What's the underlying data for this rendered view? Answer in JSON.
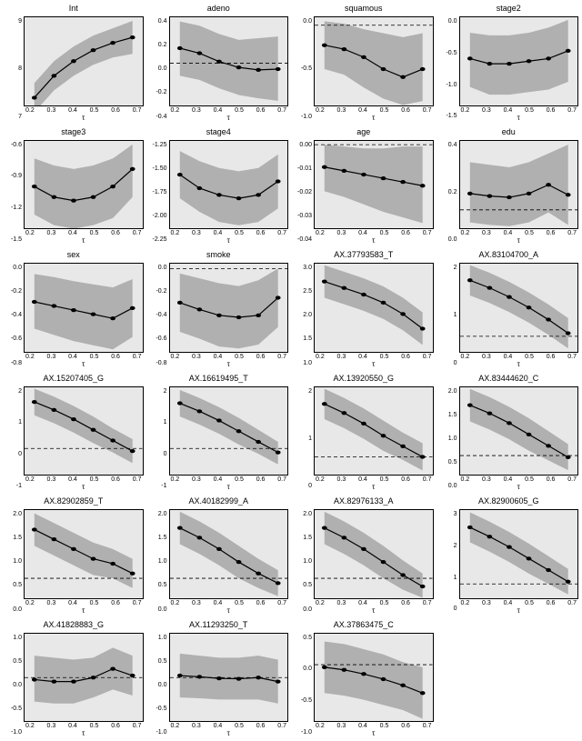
{
  "global": {
    "bg_color": "#e8e8e8",
    "band_color": "#b0b0b0",
    "line_color": "#000000",
    "zero_dash": "4,3",
    "marker_radius": 2.2,
    "line_width": 1.2,
    "title_fontsize": 9,
    "tick_fontsize": 7,
    "xlabel": "τ",
    "x_values": [
      0.2,
      0.3,
      0.4,
      0.5,
      0.6,
      0.7
    ],
    "x_tick_labels": [
      "0.2",
      "0.3",
      "0.4",
      "0.5",
      "0.6",
      "0.7"
    ],
    "x_domain": [
      0.15,
      0.75
    ]
  },
  "panels": [
    {
      "title": "Int",
      "ylim": [
        6.8,
        9.2
      ],
      "yticks": [
        7,
        8,
        9
      ],
      "y_tick_labels": [
        "7",
        "8",
        "9"
      ],
      "zero_line": false,
      "upper": [
        7.4,
        8.0,
        8.4,
        8.7,
        8.9,
        9.1
      ],
      "mid": [
        7.0,
        7.6,
        8.0,
        8.3,
        8.5,
        8.65
      ],
      "lower": [
        6.6,
        7.2,
        7.6,
        7.9,
        8.1,
        8.2
      ]
    },
    {
      "title": "adeno",
      "ylim": [
        -0.5,
        0.55
      ],
      "yticks": [
        -0.4,
        -0.2,
        0.0,
        0.2,
        0.4
      ],
      "y_tick_labels": [
        "-0.4",
        "-0.2",
        "0.0",
        "0.2",
        "0.4"
      ],
      "zero_line": true,
      "upper": [
        0.5,
        0.45,
        0.35,
        0.28,
        0.3,
        0.32
      ],
      "mid": [
        0.18,
        0.12,
        0.02,
        -0.05,
        -0.08,
        -0.07
      ],
      "lower": [
        -0.15,
        -0.2,
        -0.3,
        -0.38,
        -0.42,
        -0.45
      ]
    },
    {
      "title": "squamous",
      "ylim": [
        -1.0,
        0.1
      ],
      "yticks": [
        -1.0,
        -0.5,
        0.0
      ],
      "y_tick_labels": [
        "-1.0",
        "-0.5",
        "0.0"
      ],
      "zero_line": true,
      "upper": [
        0.05,
        0.02,
        -0.05,
        -0.1,
        -0.15,
        -0.1
      ],
      "mid": [
        -0.25,
        -0.3,
        -0.4,
        -0.55,
        -0.65,
        -0.55
      ],
      "lower": [
        -0.55,
        -0.62,
        -0.78,
        -0.92,
        -1.0,
        -0.95
      ]
    },
    {
      "title": "stage2",
      "ylim": [
        -1.6,
        0.1
      ],
      "yticks": [
        -1.5,
        -1.0,
        -0.5,
        0.0
      ],
      "y_tick_labels": [
        "-1.5",
        "-1.0",
        "-0.5",
        "0.0"
      ],
      "zero_line": false,
      "upper": [
        -0.2,
        -0.25,
        -0.25,
        -0.2,
        -0.1,
        0.05
      ],
      "mid": [
        -0.7,
        -0.8,
        -0.8,
        -0.75,
        -0.7,
        -0.55
      ],
      "lower": [
        -1.25,
        -1.4,
        -1.4,
        -1.35,
        -1.3,
        -1.15
      ]
    },
    {
      "title": "stage3",
      "ylim": [
        -1.55,
        -0.3
      ],
      "yticks": [
        -1.5,
        -1.2,
        -0.9,
        -0.6
      ],
      "y_tick_labels": [
        "-1.5",
        "-1.2",
        "-0.9",
        "-0.6"
      ],
      "zero_line": false,
      "upper": [
        -0.55,
        -0.65,
        -0.7,
        -0.65,
        -0.55,
        -0.35
      ],
      "mid": [
        -0.95,
        -1.1,
        -1.15,
        -1.1,
        -0.95,
        -0.7
      ],
      "lower": [
        -1.35,
        -1.5,
        -1.55,
        -1.5,
        -1.4,
        -1.1
      ]
    },
    {
      "title": "stage4",
      "ylim": [
        -2.4,
        -1.1
      ],
      "yticks": [
        -2.25,
        -2.0,
        -1.75,
        -1.5,
        -1.25
      ],
      "y_tick_labels": [
        "-2.25",
        "-2.00",
        "-1.75",
        "-1.50",
        "-1.25"
      ],
      "zero_line": false,
      "upper": [
        -1.25,
        -1.4,
        -1.5,
        -1.55,
        -1.5,
        -1.3
      ],
      "mid": [
        -1.6,
        -1.8,
        -1.9,
        -1.95,
        -1.9,
        -1.7
      ],
      "lower": [
        -1.95,
        -2.15,
        -2.3,
        -2.35,
        -2.3,
        -2.1
      ]
    },
    {
      "title": "age",
      "ylim": [
        -0.045,
        0.002
      ],
      "yticks": [
        -0.04,
        -0.03,
        -0.02,
        -0.01,
        0.0
      ],
      "y_tick_labels": [
        "-0.04",
        "-0.03",
        "-0.02",
        "-0.01",
        "0.00"
      ],
      "zero_line": true,
      "upper": [
        0.0,
        -0.001,
        -0.002,
        -0.002,
        -0.001,
        -0.001
      ],
      "mid": [
        -0.012,
        -0.014,
        -0.016,
        -0.018,
        -0.02,
        -0.022
      ],
      "lower": [
        -0.025,
        -0.028,
        -0.032,
        -0.036,
        -0.039,
        -0.042
      ]
    },
    {
      "title": "edu",
      "ylim": [
        -0.15,
        0.55
      ],
      "yticks": [
        0.0,
        0.2,
        0.4
      ],
      "y_tick_labels": [
        "0.0",
        "0.2",
        "0.4"
      ],
      "zero_line": true,
      "upper": [
        0.38,
        0.36,
        0.34,
        0.38,
        0.45,
        0.52
      ],
      "mid": [
        0.13,
        0.11,
        0.1,
        0.13,
        0.2,
        0.12
      ],
      "lower": [
        -0.1,
        -0.12,
        -0.13,
        -0.1,
        -0.02,
        -0.12
      ]
    },
    {
      "title": "sex",
      "ylim": [
        -0.8,
        0.05
      ],
      "yticks": [
        -0.8,
        -0.6,
        -0.4,
        -0.2,
        0.0
      ],
      "y_tick_labels": [
        "-0.8",
        "-0.6",
        "-0.4",
        "-0.2",
        "0.0"
      ],
      "zero_line": false,
      "upper": [
        -0.05,
        -0.08,
        -0.12,
        -0.15,
        -0.18,
        -0.1
      ],
      "mid": [
        -0.32,
        -0.36,
        -0.4,
        -0.44,
        -0.48,
        -0.38
      ],
      "lower": [
        -0.58,
        -0.64,
        -0.7,
        -0.74,
        -0.78,
        -0.66
      ]
    },
    {
      "title": "smoke",
      "ylim": [
        -0.85,
        0.05
      ],
      "yticks": [
        -0.8,
        -0.6,
        -0.4,
        -0.2,
        0.0
      ],
      "y_tick_labels": [
        "-0.8",
        "-0.6",
        "-0.4",
        "-0.2",
        "0.0"
      ],
      "zero_line": true,
      "upper": [
        -0.05,
        -0.1,
        -0.15,
        -0.18,
        -0.12,
        0.0
      ],
      "mid": [
        -0.35,
        -0.42,
        -0.48,
        -0.5,
        -0.48,
        -0.3
      ],
      "lower": [
        -0.65,
        -0.72,
        -0.8,
        -0.82,
        -0.78,
        -0.6
      ]
    },
    {
      "title": "AX.37793583_T",
      "ylim": [
        0.4,
        3.1
      ],
      "yticks": [
        1.0,
        1.5,
        2.0,
        2.5,
        3.0
      ],
      "y_tick_labels": [
        "1.0",
        "1.5",
        "2.0",
        "2.5",
        "3.0"
      ],
      "zero_line": false,
      "upper": [
        3.05,
        2.85,
        2.65,
        2.4,
        2.05,
        1.6
      ],
      "mid": [
        2.55,
        2.35,
        2.15,
        1.9,
        1.55,
        1.1
      ],
      "lower": [
        2.05,
        1.85,
        1.65,
        1.4,
        1.05,
        0.6
      ]
    },
    {
      "title": "AX.83104700_A",
      "ylim": [
        -0.5,
        2.4
      ],
      "yticks": [
        0,
        1,
        2
      ],
      "y_tick_labels": [
        "0",
        "1",
        "2"
      ],
      "zero_line": true,
      "upper": [
        2.35,
        2.1,
        1.8,
        1.45,
        1.05,
        0.6
      ],
      "mid": [
        1.85,
        1.6,
        1.3,
        0.95,
        0.55,
        0.1
      ],
      "lower": [
        1.35,
        1.1,
        0.8,
        0.45,
        0.05,
        -0.4
      ]
    },
    {
      "title": "AX.15207405_G",
      "ylim": [
        -1.0,
        2.3
      ],
      "yticks": [
        -1,
        0,
        1,
        2
      ],
      "y_tick_labels": [
        "-1",
        "0",
        "1",
        "2"
      ],
      "zero_line": true,
      "upper": [
        2.25,
        1.95,
        1.6,
        1.2,
        0.75,
        0.35
      ],
      "mid": [
        1.75,
        1.45,
        1.1,
        0.7,
        0.3,
        -0.1
      ],
      "lower": [
        1.25,
        0.95,
        0.6,
        0.2,
        -0.15,
        -0.55
      ]
    },
    {
      "title": "AX.16619495_T",
      "ylim": [
        -1.0,
        2.3
      ],
      "yticks": [
        -1,
        0,
        1,
        2
      ],
      "y_tick_labels": [
        "-1",
        "0",
        "1",
        "2"
      ],
      "zero_line": true,
      "upper": [
        2.2,
        1.9,
        1.55,
        1.15,
        0.7,
        0.25
      ],
      "mid": [
        1.7,
        1.4,
        1.05,
        0.65,
        0.25,
        -0.15
      ],
      "lower": [
        1.2,
        0.9,
        0.55,
        0.15,
        -0.2,
        -0.6
      ]
    },
    {
      "title": "AX.13920550_G",
      "ylim": [
        -0.6,
        2.3
      ],
      "yticks": [
        0,
        1,
        2
      ],
      "y_tick_labels": [
        "0",
        "1",
        "2"
      ],
      "zero_line": true,
      "upper": [
        2.25,
        1.95,
        1.6,
        1.2,
        0.8,
        0.45
      ],
      "mid": [
        1.75,
        1.45,
        1.1,
        0.7,
        0.35,
        0.0
      ],
      "lower": [
        1.25,
        0.95,
        0.6,
        0.2,
        -0.1,
        -0.45
      ]
    },
    {
      "title": "AX.83444620_C",
      "ylim": [
        -0.6,
        2.1
      ],
      "yticks": [
        0.0,
        0.5,
        1.0,
        1.5,
        2.0
      ],
      "y_tick_labels": [
        "0.0",
        "0.5",
        "1.0",
        "1.5",
        "2.0"
      ],
      "zero_line": true,
      "upper": [
        2.05,
        1.8,
        1.5,
        1.15,
        0.75,
        0.35
      ],
      "mid": [
        1.55,
        1.3,
        1.0,
        0.65,
        0.3,
        -0.05
      ],
      "lower": [
        1.05,
        0.8,
        0.5,
        0.15,
        -0.15,
        -0.45
      ]
    },
    {
      "title": "AX.82902859_T",
      "ylim": [
        -0.6,
        2.1
      ],
      "yticks": [
        0.0,
        0.5,
        1.0,
        1.5,
        2.0
      ],
      "y_tick_labels": [
        "0.0",
        "0.5",
        "1.0",
        "1.5",
        "2.0"
      ],
      "zero_line": true,
      "upper": [
        2.0,
        1.7,
        1.4,
        1.1,
        0.9,
        0.6
      ],
      "mid": [
        1.5,
        1.2,
        0.9,
        0.6,
        0.45,
        0.15
      ],
      "lower": [
        1.0,
        0.7,
        0.4,
        0.1,
        0.0,
        -0.3
      ]
    },
    {
      "title": "AX.40182999_A",
      "ylim": [
        -0.6,
        2.1
      ],
      "yticks": [
        0.0,
        0.5,
        1.0,
        1.5,
        2.0
      ],
      "y_tick_labels": [
        "0.0",
        "0.5",
        "1.0",
        "1.5",
        "2.0"
      ],
      "zero_line": true,
      "upper": [
        2.05,
        1.75,
        1.4,
        1.0,
        0.6,
        0.25
      ],
      "mid": [
        1.55,
        1.25,
        0.9,
        0.5,
        0.15,
        -0.15
      ],
      "lower": [
        1.05,
        0.75,
        0.4,
        0.0,
        -0.3,
        -0.55
      ]
    },
    {
      "title": "AX.82976133_A",
      "ylim": [
        -0.6,
        2.1
      ],
      "yticks": [
        0.0,
        0.5,
        1.0,
        1.5,
        2.0
      ],
      "y_tick_labels": [
        "0.0",
        "0.5",
        "1.0",
        "1.5",
        "2.0"
      ],
      "zero_line": true,
      "upper": [
        2.05,
        1.75,
        1.4,
        1.0,
        0.55,
        0.15
      ],
      "mid": [
        1.55,
        1.25,
        0.9,
        0.5,
        0.1,
        -0.25
      ],
      "lower": [
        1.05,
        0.75,
        0.4,
        0.0,
        -0.35,
        -0.6
      ]
    },
    {
      "title": "AX.82900605_G",
      "ylim": [
        -0.6,
        3.2
      ],
      "yticks": [
        0,
        1,
        2,
        3
      ],
      "y_tick_labels": [
        "0",
        "1",
        "2",
        "3"
      ],
      "zero_line": true,
      "upper": [
        3.1,
        2.7,
        2.25,
        1.75,
        1.2,
        0.65
      ],
      "mid": [
        2.45,
        2.05,
        1.6,
        1.1,
        0.6,
        0.1
      ],
      "lower": [
        1.8,
        1.4,
        0.95,
        0.45,
        0.0,
        -0.45
      ]
    },
    {
      "title": "AX.41828883_G",
      "ylim": [
        -1.1,
        1.1
      ],
      "yticks": [
        -1.0,
        -0.5,
        0.0,
        0.5,
        1.0
      ],
      "y_tick_labels": [
        "-1.0",
        "-0.5",
        "0.0",
        "0.5",
        "1.0"
      ],
      "zero_line": true,
      "upper": [
        0.55,
        0.5,
        0.45,
        0.5,
        0.75,
        0.55
      ],
      "mid": [
        -0.05,
        -0.1,
        -0.1,
        0.0,
        0.22,
        0.05
      ],
      "lower": [
        -0.6,
        -0.65,
        -0.65,
        -0.5,
        -0.3,
        -0.45
      ]
    },
    {
      "title": "AX.11293250_T",
      "ylim": [
        -1.1,
        1.1
      ],
      "yticks": [
        -1.0,
        -0.5,
        0.0,
        0.5,
        1.0
      ],
      "y_tick_labels": [
        "-1.0",
        "-0.5",
        "0.0",
        "0.5",
        "1.0"
      ],
      "zero_line": true,
      "upper": [
        0.6,
        0.55,
        0.5,
        0.5,
        0.55,
        0.45
      ],
      "mid": [
        0.05,
        0.02,
        -0.02,
        -0.03,
        0.0,
        -0.1
      ],
      "lower": [
        -0.5,
        -0.52,
        -0.55,
        -0.55,
        -0.55,
        -0.65
      ]
    },
    {
      "title": "AX.37863475_C",
      "ylim": [
        -1.1,
        0.6
      ],
      "yticks": [
        -1.0,
        -0.5,
        0.0,
        0.5
      ],
      "y_tick_labels": [
        "-1.0",
        "-0.5",
        "0.0",
        "0.5"
      ],
      "zero_line": true,
      "upper": [
        0.45,
        0.4,
        0.3,
        0.2,
        0.05,
        -0.05
      ],
      "mid": [
        -0.05,
        -0.1,
        -0.18,
        -0.28,
        -0.4,
        -0.55
      ],
      "lower": [
        -0.55,
        -0.6,
        -0.68,
        -0.78,
        -0.88,
        -1.05
      ]
    }
  ]
}
